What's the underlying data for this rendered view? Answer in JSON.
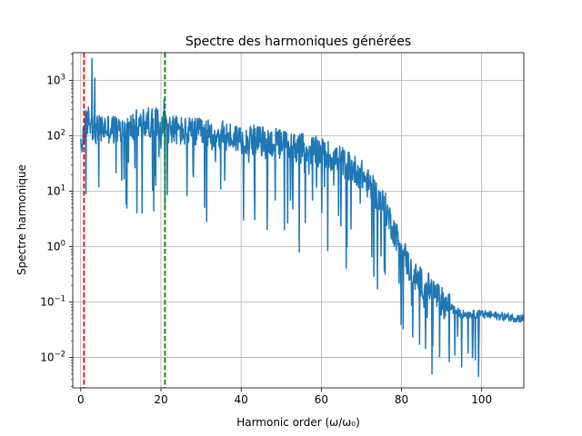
{
  "chart_data": {
    "type": "line",
    "title": "Spectre des harmoniques générées",
    "xlabel": "Harmonic order (ω/ω₀)",
    "ylabel": "Spectre harmonique",
    "xlim": [
      -2,
      110.5
    ],
    "ylim_log10": [
      -2.55,
      3.5
    ],
    "y_scale": "log",
    "grid": true,
    "x_ticks": [
      0,
      20,
      40,
      60,
      80,
      100
    ],
    "x_tick_labels": [
      "0",
      "20",
      "40",
      "60",
      "80",
      "100"
    ],
    "y_ticks_log10": [
      -2,
      -1,
      0,
      1,
      2,
      3
    ],
    "y_tick_labels": [
      {
        "base": "10",
        "exp": "−2"
      },
      {
        "base": "10",
        "exp": "−1"
      },
      {
        "base": "10",
        "exp": "0"
      },
      {
        "base": "10",
        "exp": "1"
      },
      {
        "base": "10",
        "exp": "2"
      },
      {
        "base": "10",
        "exp": "3"
      }
    ],
    "series_color": "#1f77b4",
    "spectrum_envelope": [
      [
        0,
        50
      ],
      [
        1,
        150
      ],
      [
        2,
        200
      ],
      [
        4,
        120
      ],
      [
        6,
        140
      ],
      [
        8,
        130
      ],
      [
        10,
        120
      ],
      [
        12,
        130
      ],
      [
        14,
        160
      ],
      [
        16,
        170
      ],
      [
        18,
        180
      ],
      [
        20,
        160
      ],
      [
        22,
        140
      ],
      [
        25,
        120
      ],
      [
        30,
        110
      ],
      [
        35,
        100
      ],
      [
        40,
        90
      ],
      [
        45,
        80
      ],
      [
        50,
        70
      ],
      [
        55,
        60
      ],
      [
        60,
        50
      ],
      [
        65,
        35
      ],
      [
        70,
        20
      ],
      [
        73,
        10
      ],
      [
        76,
        5
      ],
      [
        78,
        2
      ],
      [
        80,
        1
      ],
      [
        82,
        0.4
      ],
      [
        84,
        0.25
      ],
      [
        86,
        0.2
      ],
      [
        88,
        0.15
      ],
      [
        90,
        0.1
      ],
      [
        92,
        0.08
      ],
      [
        95,
        0.06
      ],
      [
        98,
        0.06
      ],
      [
        100,
        0.06
      ],
      [
        105,
        0.055
      ],
      [
        110.5,
        0.05
      ]
    ],
    "spikes": [
      {
        "x": 2.8,
        "y": 2500
      },
      {
        "x": 3.5,
        "y": 1100
      },
      {
        "x": 20.8,
        "y": 450
      }
    ],
    "vlines": [
      {
        "x": 0.8,
        "color": "#ff0000",
        "style": "dashed"
      },
      {
        "x": 21,
        "color": "#008000",
        "style": "dashed"
      }
    ]
  }
}
